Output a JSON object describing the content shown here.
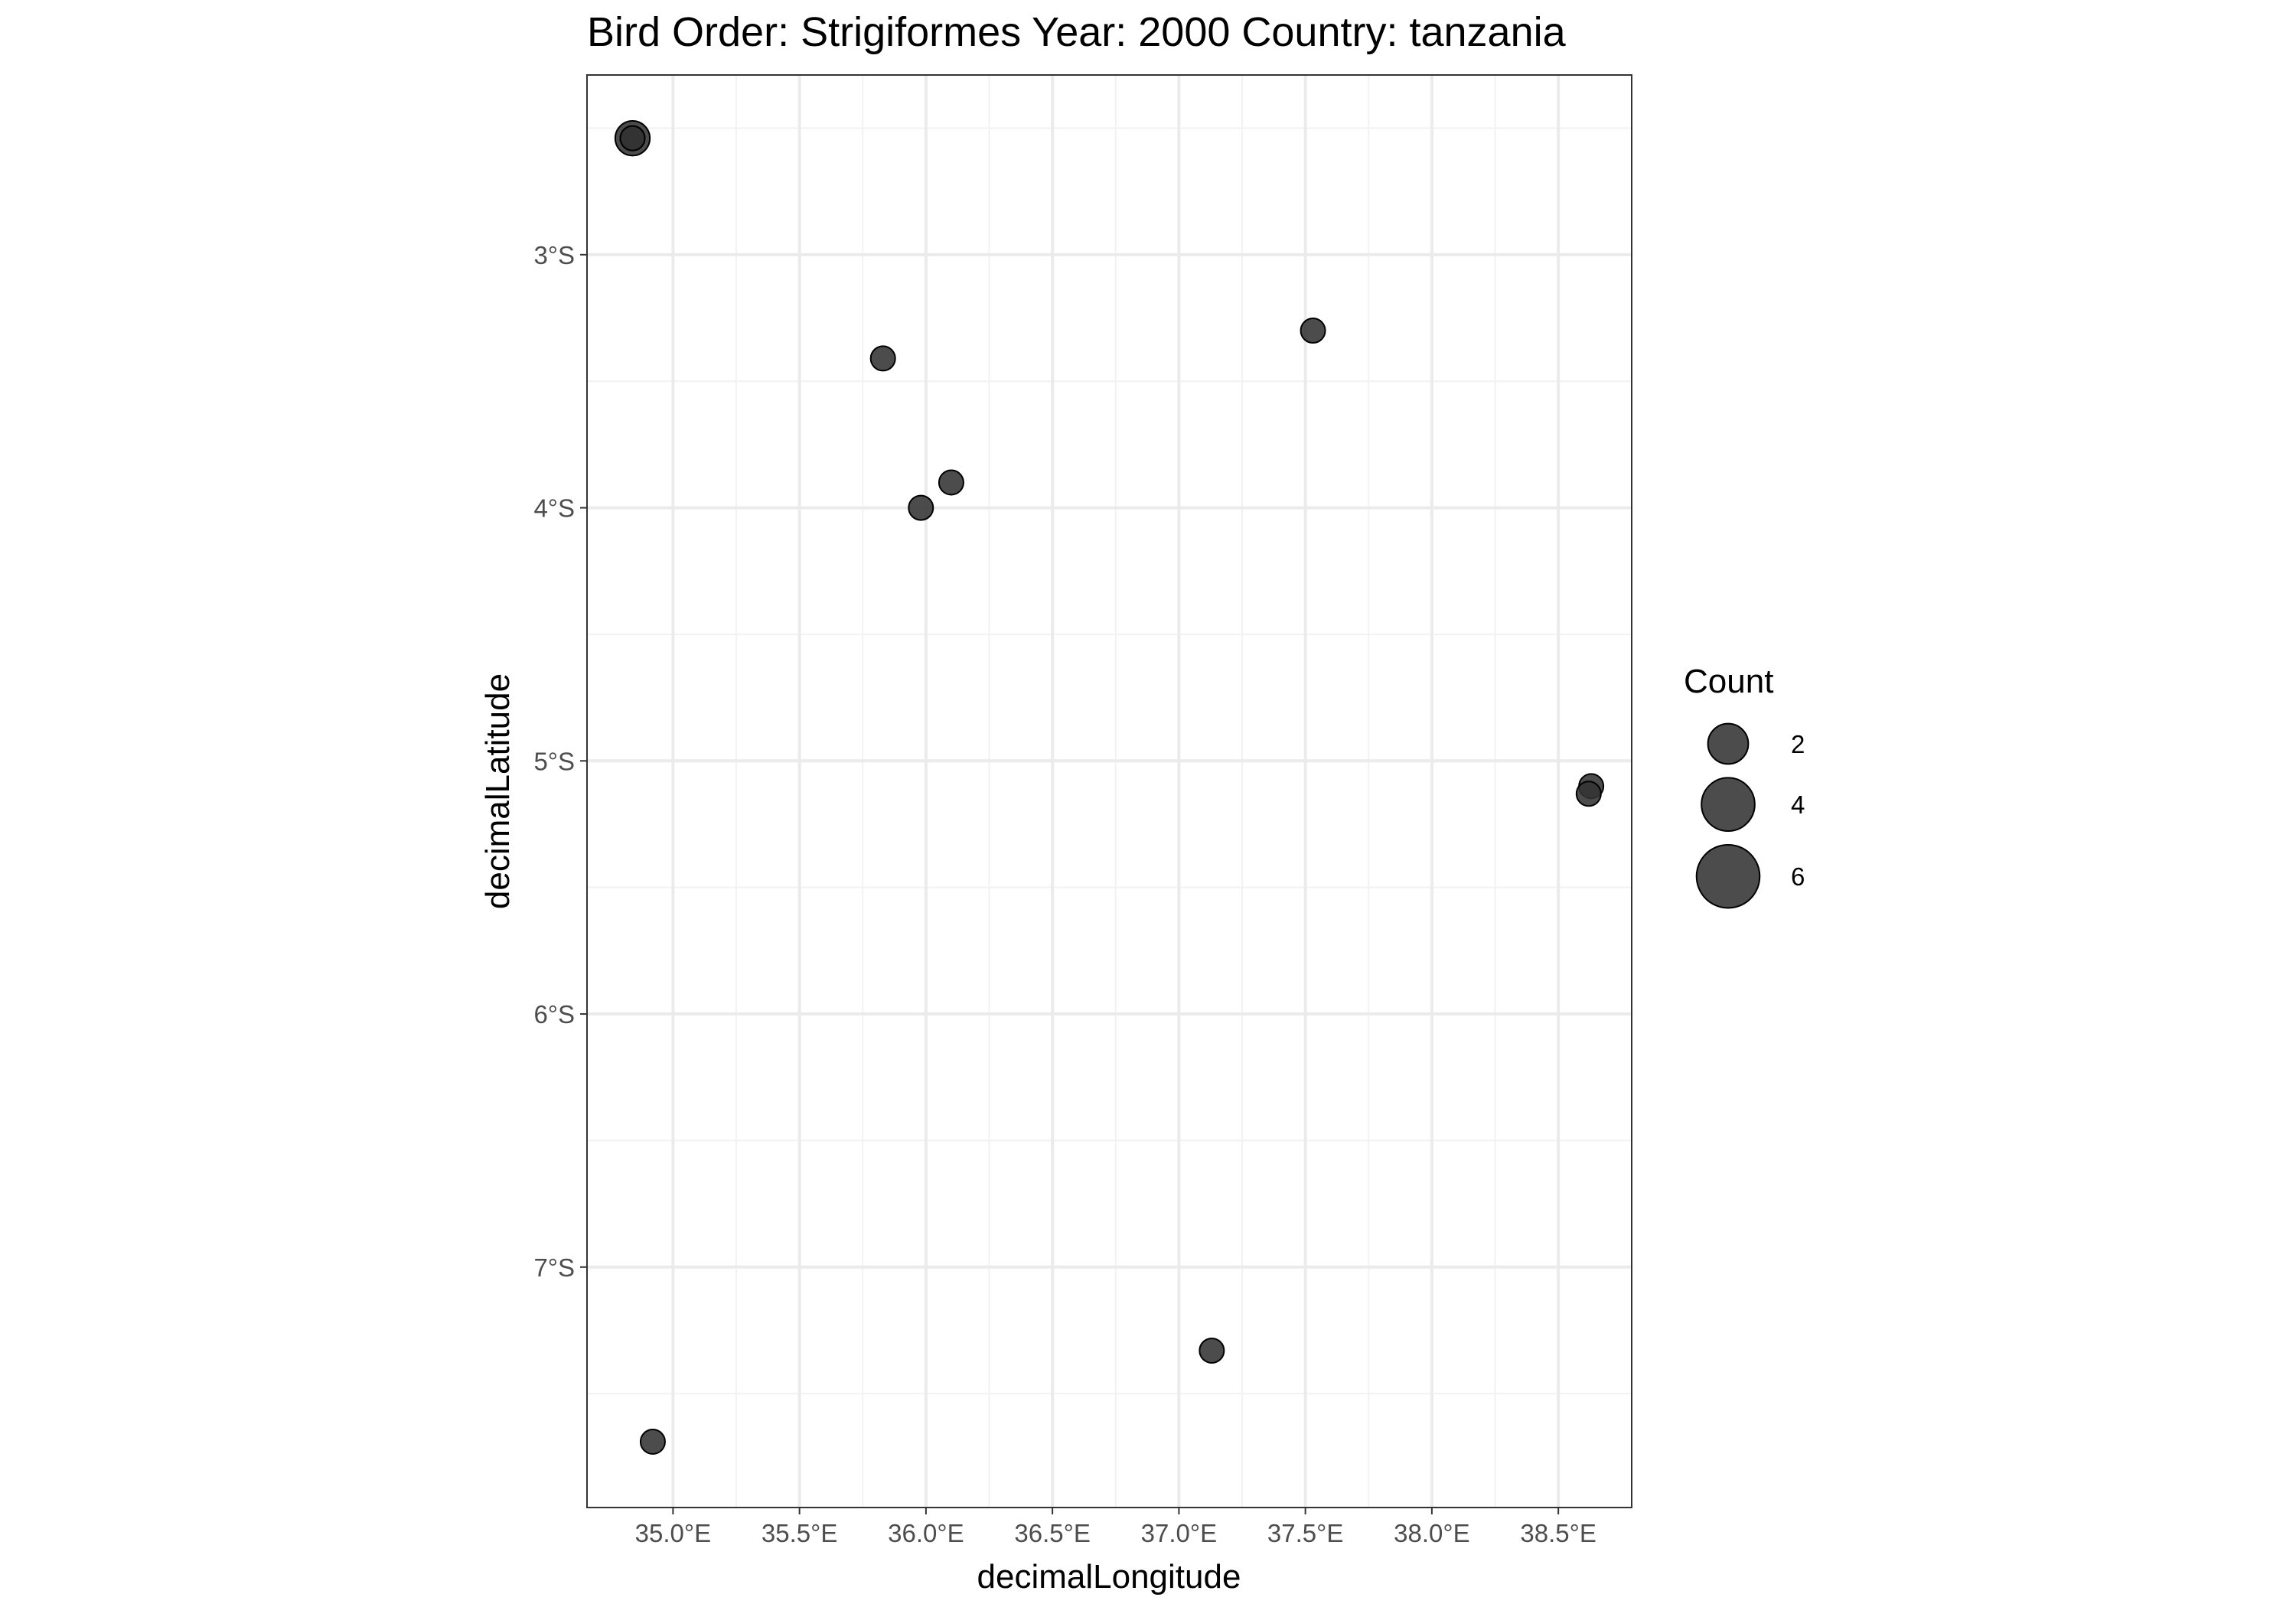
{
  "chart_data": {
    "type": "scatter",
    "title": "Bird Order: Strigiformes Year: 2000 Country: tanzania",
    "xlabel": "decimalLongitude",
    "ylabel": "decimalLatitude",
    "xlim": [
      34.66,
      38.79
    ],
    "ylim": [
      -7.95,
      -2.29
    ],
    "x_ticks": [
      {
        "value": 35.0,
        "label": "35.0°E"
      },
      {
        "value": 35.5,
        "label": "35.5°E"
      },
      {
        "value": 36.0,
        "label": "36.0°E"
      },
      {
        "value": 36.5,
        "label": "36.5°E"
      },
      {
        "value": 37.0,
        "label": "37.0°E"
      },
      {
        "value": 37.5,
        "label": "37.5°E"
      },
      {
        "value": 38.0,
        "label": "38.0°E"
      },
      {
        "value": 38.5,
        "label": "38.5°E"
      }
    ],
    "y_ticks": [
      {
        "value": -3,
        "label": "3°S"
      },
      {
        "value": -4,
        "label": "4°S"
      },
      {
        "value": -5,
        "label": "5°S"
      },
      {
        "value": -6,
        "label": "6°S"
      },
      {
        "value": -7,
        "label": "7°S"
      }
    ],
    "grid": true,
    "points": [
      {
        "lon": 34.84,
        "lat": -2.54,
        "count": 2
      },
      {
        "lon": 34.84,
        "lat": -2.54,
        "count": 1
      },
      {
        "lon": 34.84,
        "lat": -2.54,
        "count": 1
      },
      {
        "lon": 35.83,
        "lat": -3.41,
        "count": 1
      },
      {
        "lon": 37.53,
        "lat": -3.3,
        "count": 1
      },
      {
        "lon": 36.1,
        "lat": -3.9,
        "count": 1
      },
      {
        "lon": 35.98,
        "lat": -4.0,
        "count": 1
      },
      {
        "lon": 38.63,
        "lat": -5.1,
        "count": 1
      },
      {
        "lon": 38.62,
        "lat": -5.13,
        "count": 1
      },
      {
        "lon": 37.13,
        "lat": -7.33,
        "count": 1
      },
      {
        "lon": 34.92,
        "lat": -7.69,
        "count": 1
      }
    ],
    "point_color": "#333333",
    "point_opacity": 0.88,
    "legend": {
      "title": "Count",
      "placement": "right",
      "entries": [
        {
          "count": 2,
          "label": "2"
        },
        {
          "count": 4,
          "label": "4"
        },
        {
          "count": 6,
          "label": "6"
        }
      ]
    }
  }
}
